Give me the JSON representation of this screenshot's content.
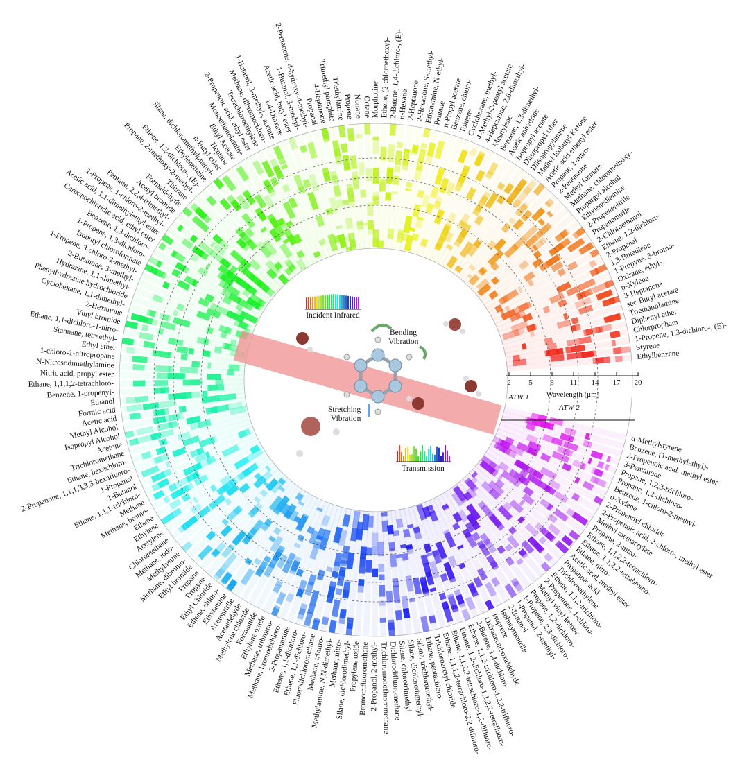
{
  "center": {
    "incident": "Incident Infrared",
    "transmission": "Transmission",
    "bending_line1": "Bending",
    "bending_line2": "Vibration",
    "stretching_line1": "Stretching",
    "stretching_line2": "Vibration"
  },
  "axis": {
    "label": "Wavelength (μm)",
    "ticks": [
      "2",
      "5",
      "8",
      "11",
      "14",
      "17",
      "20"
    ],
    "atw1": "ATW 1",
    "atw2": "ATW 2"
  },
  "colors": {
    "atw_band": "#f3c7c7",
    "accent_red": "#e8302b"
  },
  "chemicals": [
    "Ethylbenzene",
    "Styrene",
    "1-Propene, 1,3-dichloro-, (E)-",
    "Chlorpropham",
    "Diphenyl ether",
    "Triethanolamine",
    "sec-Butyl acetate",
    "3-Heptanone",
    "p-Xylene",
    "Oxirane, ethyl-",
    "1-Propyne, 3-bromo-",
    "1,3-Butadiene",
    "2-Propenal",
    "Ethane, 1,2-dichloro-",
    "2-Chloroethanol",
    "Propanenitrile",
    "2-Propenenitrile",
    "Ethylenediamine",
    "Propargyl alcohol",
    "Methane, chloromethoxy-",
    "Methyl formate",
    "2-Pentanone",
    "Propane, 1-nitro-",
    "Acetic acid ethenyl ester",
    "Methyl Isobutyl Ketone",
    "Diisopropylamine",
    "Diisopropyl ether",
    "Isopropyl acetate",
    "Acetic anhydride",
    "Benzene, 1,3-dimethyl-",
    "Mesitylene",
    "4-Heptanone, 2,6-dimethyl-",
    "4-Methyl-2-pentyl acetate",
    "Cyclohexane, methyl-",
    "Toluene",
    "Benzene, chloro-",
    "n-Propyl acetate",
    "Pentane",
    "Ethanamine, N-ethyl-",
    "2-Hexanone, 5-methyl-",
    "2-Heptanone",
    "n-Hexane",
    "2-Butene, 1,4-dichloro-, (E)-",
    "Ethene, (2-chloroethoxy)-",
    "Morpholine",
    "Octane",
    "Nonane",
    "Propene",
    "Triethylamine",
    "Trimethyl phosphite",
    "4-Heptanone",
    "Propanal",
    "2-Pentanone, 4-hydroxy-4-methyl-",
    "1-Butanol, 3-methyl-",
    "Acetic acid, butyl ester",
    "1,4-Dioxane",
    "1-Butanol, 3-methyl-, acetate",
    "Methane, dibromochloro-",
    "Tetrachloroethylene",
    "2-Propenoic acid, ethyl ester",
    "Monoethanolamine",
    "Ethyl Acetate",
    "Heptane",
    "n-Butyl ether",
    "Silane, dichloromethylphenyl-",
    "Ethyleneimine",
    "Ethene, 1,2-dichloro-, (E)-",
    "Propane, 2-methoxy-2-methyl-",
    "Thiirane",
    "Formaldehyde",
    "Acetyl bromide",
    "Pentane, 2,2,4-trimethyl-",
    "1-Propene, 1-chloro-2-methyl-",
    "Acetic acid, 1,1-dimethylethyl ester",
    "Carbonochloridic acid, ethyl ester",
    "Benzene, 1,3-dichloro-",
    "1-Propene, 1,3-dichloro-",
    "Isobutyl chloroformate",
    "1-Propene, 3-chloro-2-methyl-",
    "2-Butanone, 3-methyl-",
    "Hydrazine, 1,1-dimethyl-",
    "Phenylhydrazine hydrochloride",
    "Cyclohexane, 1,1-dimethyl-",
    "2-Hexanone",
    "Vinyl bromide",
    "Ethane, 1,1-dichloro-1-nitro-",
    "Stannane, tetraethyl-",
    "Ethyl ether",
    "1-chloro-1-nitropropane",
    "N-Nitrosodimethylamine",
    "Nitric acid, propyl ester",
    "Ethane, 1,1,1,2-tetrachloro-",
    "Benzene, 1-propenyl-",
    "Ethanol",
    "Formic acid",
    "Acetic acid",
    "Methyl Alcohol",
    "Isopropyl Alcohol",
    "Acetone",
    "Trichloromethane",
    "Ethane, hexachloro-",
    "2-Propanone, 1,1,1,3,3,3-hexafluoro-",
    "1-Propanol",
    "1-Butanol",
    "Ethane, 1,1,1-trichloro-",
    "Methane",
    "Methane, bromo-",
    "Ethane",
    "Ethylene",
    "Acetylene",
    "Chloromethane",
    "Methane, iodo-",
    "Methylamine",
    "Methane, dibromo-",
    "Ethyl bromide",
    "Propane",
    "Propyne",
    "Ethyl Chloride",
    "Ethene, chloro-",
    "Ethylamine",
    "Acetonitrile",
    "Acetaldehyde",
    "Methylene chloride",
    "Formamide",
    "Ethylene oxide",
    "Methane, tribromo-",
    "Methane, bromodichloro-",
    "2-Propanamine",
    "Ethane, 1,1-dichloro-",
    "Ethene, 1,1-dichloro-",
    "Fluorodichloromethane",
    "Methane, trinitro-",
    "Methylamine, N,N-dimethyl-",
    "Methane, nitro-",
    "Silane, dichlorodimethyl-",
    "Propylene oxide",
    "Bromotrifluoromethane",
    "2-Propanol, 2-methyl-",
    "Trichloromonofluoromethane",
    "Dichlorodifluoromethane",
    "Silane, chlorotrimethyl-",
    "Silane, dichlorodimethyl-",
    "Silane, trichloromethyl-",
    "Ethane, pentachloro-",
    "Trichloroacetyl chloride",
    "Ethane, 1,1,1,2-tetrachloro-2,2-difluoro-",
    "Ethane, 1,1,2,2-tetrachloro-1,2-difluoro-",
    "Ethane, 1,2-dichloro-1,1,2,2-tetrafluoro-",
    "Ethane, 1,1,2-trichloro-1,2,2-trifluoro-",
    "2-Butene, 1,4-dichloro-",
    "Oxiranecarboxaldehyde",
    "Isoprene",
    "Isobutyronitrile",
    "2-Butanol",
    "1-Propanol, 2-methyl-",
    "1-Propene, 2,3-dichloro-",
    "Propane, 1,2-dichloro-",
    "Methyl vinyl ketone",
    "2-Propanone, 1-chloro-",
    "Ethane, 1,1,2-trichloro-",
    "Trichloroethylene",
    "Propanoic acid",
    "Acetic acid, methyl ester",
    "Ethane, nitro-",
    "Ethane, 1,1,2,2-tetrabromo-",
    "Ethane, 1,1,2,2-tetrachloro-",
    "Propane, 2-nitro-",
    "Methyl methacrylate",
    "2-Propenoic acid, 2-chloro-, methyl ester",
    "2-Propenoyl chloride",
    "o-Xylene",
    "Benzene, 1-chloro-2-methyl-",
    "Propane, 1,2-dichloro-",
    "Propane, 1,2,3-trichloro-",
    "3-Pentanone",
    "2-Propenoic acid, methyl ester",
    "Benzene, (1-methylethyl)-",
    "α-Methylstyrene"
  ]
}
